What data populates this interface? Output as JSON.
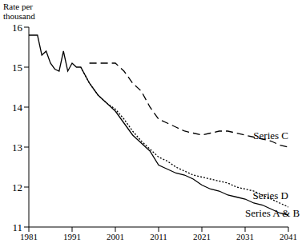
{
  "chart_data": {
    "type": "line",
    "y_label": "Rate per thousand",
    "x": [
      1981,
      1982,
      1983,
      1984,
      1985,
      1986,
      1987,
      1988,
      1989,
      1990,
      1991,
      1992,
      1993,
      1995,
      1997,
      1999,
      2001,
      2003,
      2005,
      2007,
      2009,
      2011,
      2013,
      2015,
      2017,
      2019,
      2021,
      2023,
      2025,
      2027,
      2029,
      2031,
      2033,
      2035,
      2037,
      2039,
      2041
    ],
    "series": [
      {
        "name": "Series C",
        "color": "#000000",
        "line_style": "dashed",
        "values": [
          null,
          null,
          null,
          null,
          null,
          null,
          null,
          null,
          null,
          null,
          null,
          null,
          null,
          15.1,
          15.1,
          15.1,
          15.1,
          14.9,
          14.6,
          14.4,
          14.0,
          13.7,
          13.6,
          13.5,
          13.4,
          13.35,
          13.3,
          13.35,
          13.4,
          13.4,
          13.35,
          13.3,
          13.25,
          13.2,
          13.15,
          13.05,
          13.0
        ]
      },
      {
        "name": "Series D",
        "color": "#000000",
        "line_style": "dotted",
        "values": [
          null,
          null,
          null,
          null,
          null,
          null,
          null,
          null,
          null,
          null,
          null,
          null,
          15.0,
          14.6,
          14.3,
          14.1,
          13.95,
          13.7,
          13.4,
          13.15,
          12.95,
          12.75,
          12.65,
          12.5,
          12.4,
          12.3,
          12.25,
          12.2,
          12.15,
          12.1,
          12.0,
          11.95,
          11.9,
          11.8,
          11.7,
          11.6,
          11.5
        ]
      },
      {
        "name": "Series A & B",
        "color": "#000000",
        "line_style": "solid",
        "values": [
          15.8,
          15.8,
          15.8,
          15.3,
          15.4,
          15.1,
          14.95,
          14.9,
          15.4,
          14.9,
          15.1,
          15.0,
          15.0,
          14.6,
          14.3,
          14.1,
          13.9,
          13.6,
          13.3,
          13.1,
          12.9,
          12.55,
          12.45,
          12.35,
          12.3,
          12.2,
          12.05,
          11.95,
          11.9,
          11.8,
          11.75,
          11.7,
          11.6,
          11.55,
          11.45,
          11.35,
          11.3
        ]
      }
    ],
    "xlim": [
      1981,
      2041
    ],
    "xticks": [
      1981,
      1991,
      2001,
      2011,
      2021,
      2031,
      2041
    ],
    "ylim": [
      11,
      16
    ],
    "yticks": [
      11,
      12,
      13,
      14,
      15,
      16
    ],
    "grid": false
  }
}
